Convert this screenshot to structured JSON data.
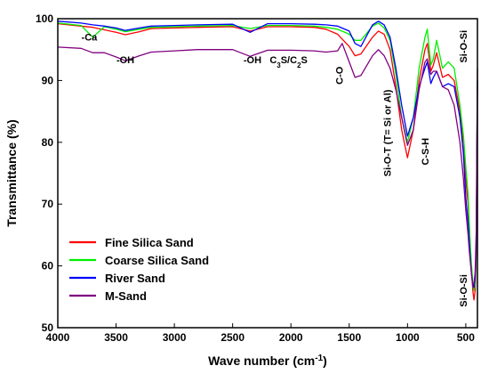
{
  "chart_data": {
    "type": "line",
    "xlabel": "Wave number (cm",
    "xlabel_sup": "-1",
    "xlabel_end": ")",
    "ylabel": "Transmittance (%)",
    "xlim": [
      4000,
      400
    ],
    "ylim": [
      50,
      100
    ],
    "xticks": [
      4000,
      3500,
      3000,
      2500,
      2000,
      1500,
      1000,
      500
    ],
    "yticks": [
      50,
      60,
      70,
      80,
      90,
      100
    ],
    "legend_position": "bottom-left",
    "annotations": [
      {
        "text": "-Ca",
        "x": 3730,
        "y": 96.5,
        "rotate": false
      },
      {
        "text": "-OH",
        "x": 3420,
        "y": 92.8,
        "rotate": false
      },
      {
        "text": "-OH",
        "x": 2330,
        "y": 92.8,
        "rotate": false
      },
      {
        "text": "C3S/C2S",
        "x": 2020,
        "y": 92.8,
        "rotate": false,
        "sub": true
      },
      {
        "text": "C-O",
        "x": 1555,
        "y": 90.8,
        "rotate": true
      },
      {
        "text": "Si-O-T (T= Si or Al)",
        "x": 1145,
        "y": 81.5,
        "rotate": true
      },
      {
        "text": "C-S-H",
        "x": 820,
        "y": 78.5,
        "rotate": true
      },
      {
        "text": "Si-O-Si",
        "x": 490,
        "y": 95.5,
        "rotate": true
      },
      {
        "text": "Si-O-Si",
        "x": 490,
        "y": 56.0,
        "rotate": true
      }
    ],
    "series": [
      {
        "name": "Fine Silica Sand",
        "color": "#ff0000",
        "x": [
          4000,
          3800,
          3700,
          3600,
          3500,
          3420,
          3300,
          3200,
          3000,
          2800,
          2500,
          2350,
          2200,
          2000,
          1800,
          1700,
          1600,
          1500,
          1450,
          1400,
          1300,
          1250,
          1200,
          1150,
          1100,
          1050,
          1000,
          950,
          900,
          850,
          830,
          800,
          778,
          750,
          700,
          650,
          600,
          550,
          520,
          500,
          480,
          470,
          460,
          450,
          440,
          430,
          420,
          410,
          405,
          400
        ],
        "y": [
          99.2,
          98.8,
          98.6,
          98.2,
          97.8,
          97.4,
          97.9,
          98.4,
          98.5,
          98.6,
          98.7,
          98.0,
          98.7,
          98.7,
          98.6,
          98.3,
          97.5,
          95.5,
          94.0,
          94.3,
          97.0,
          98.0,
          97.5,
          95.0,
          89.0,
          82.0,
          77.5,
          82.0,
          90.0,
          95.0,
          96.0,
          91.5,
          92.5,
          94.5,
          90.5,
          91.0,
          90.0,
          85.0,
          80.0,
          74.0,
          70.0,
          66.0,
          62.0,
          59.0,
          56.0,
          54.5,
          56.0,
          62.0,
          75.0,
          89.0
        ]
      },
      {
        "name": "Coarse Silica Sand",
        "color": "#00ee00",
        "x": [
          4000,
          3800,
          3700,
          3600,
          3500,
          3420,
          3300,
          3200,
          3000,
          2800,
          2500,
          2350,
          2200,
          2000,
          1800,
          1700,
          1600,
          1500,
          1450,
          1400,
          1300,
          1250,
          1200,
          1150,
          1100,
          1050,
          1000,
          950,
          900,
          850,
          830,
          800,
          778,
          750,
          700,
          650,
          600,
          550,
          520,
          500,
          480,
          470,
          460,
          450,
          440,
          430,
          420,
          410,
          405,
          400
        ],
        "y": [
          99.3,
          98.9,
          97.0,
          98.7,
          98.3,
          97.9,
          98.3,
          98.6,
          98.7,
          98.8,
          98.9,
          98.4,
          98.9,
          98.9,
          98.8,
          98.6,
          98.3,
          97.5,
          96.5,
          96.5,
          98.8,
          99.3,
          98.5,
          96.5,
          91.0,
          84.0,
          80.0,
          84.0,
          92.0,
          97.0,
          98.3,
          92.5,
          93.5,
          96.5,
          92.0,
          93.0,
          92.0,
          86.0,
          81.0,
          76.0,
          71.5,
          67.0,
          63.0,
          60.0,
          57.5,
          56.0,
          57.0,
          63.0,
          76.0,
          90.0
        ]
      },
      {
        "name": "River Sand",
        "color": "#0000ff",
        "x": [
          4000,
          3800,
          3700,
          3600,
          3500,
          3420,
          3300,
          3200,
          3000,
          2800,
          2500,
          2350,
          2200,
          2000,
          1800,
          1700,
          1600,
          1500,
          1450,
          1400,
          1300,
          1250,
          1200,
          1150,
          1100,
          1050,
          1000,
          950,
          900,
          850,
          830,
          800,
          778,
          750,
          700,
          650,
          600,
          550,
          520,
          500,
          480,
          470,
          460,
          450,
          440,
          430,
          420,
          410,
          405,
          400
        ],
        "y": [
          99.6,
          99.3,
          99.0,
          98.8,
          98.5,
          98.1,
          98.5,
          98.8,
          98.9,
          99.0,
          99.1,
          97.8,
          99.2,
          99.2,
          99.1,
          99.0,
          98.8,
          98.0,
          96.0,
          95.5,
          99.0,
          99.6,
          99.0,
          97.0,
          92.0,
          86.0,
          81.0,
          84.0,
          89.0,
          92.0,
          93.0,
          89.5,
          90.5,
          91.5,
          89.0,
          89.5,
          89.0,
          84.0,
          78.0,
          71.0,
          67.0,
          64.0,
          61.0,
          58.5,
          57.0,
          56.5,
          58.0,
          64.0,
          77.0,
          90.0
        ]
      },
      {
        "name": "M-Sand",
        "color": "#800080",
        "x": [
          4000,
          3800,
          3700,
          3600,
          3500,
          3420,
          3300,
          3200,
          3000,
          2800,
          2500,
          2350,
          2200,
          2000,
          1800,
          1700,
          1600,
          1560,
          1500,
          1450,
          1400,
          1300,
          1250,
          1200,
          1150,
          1100,
          1050,
          1000,
          950,
          900,
          850,
          830,
          800,
          778,
          750,
          700,
          650,
          600,
          550,
          520,
          500,
          480,
          470,
          460,
          450,
          440,
          430,
          420,
          410,
          405,
          400
        ],
        "y": [
          95.4,
          95.2,
          94.5,
          94.5,
          93.8,
          93.2,
          94.0,
          94.6,
          94.8,
          95.0,
          95.0,
          93.9,
          94.9,
          94.9,
          94.8,
          94.6,
          94.8,
          96.0,
          93.0,
          90.5,
          90.8,
          94.0,
          95.0,
          94.0,
          92.0,
          88.5,
          84.0,
          79.5,
          82.0,
          88.5,
          93.0,
          93.5,
          91.0,
          91.5,
          91.5,
          89.0,
          88.5,
          86.0,
          80.0,
          74.0,
          69.0,
          65.0,
          62.5,
          60.5,
          58.5,
          57.0,
          57.0,
          59.0,
          66.0,
          79.0,
          92.0
        ]
      }
    ]
  }
}
